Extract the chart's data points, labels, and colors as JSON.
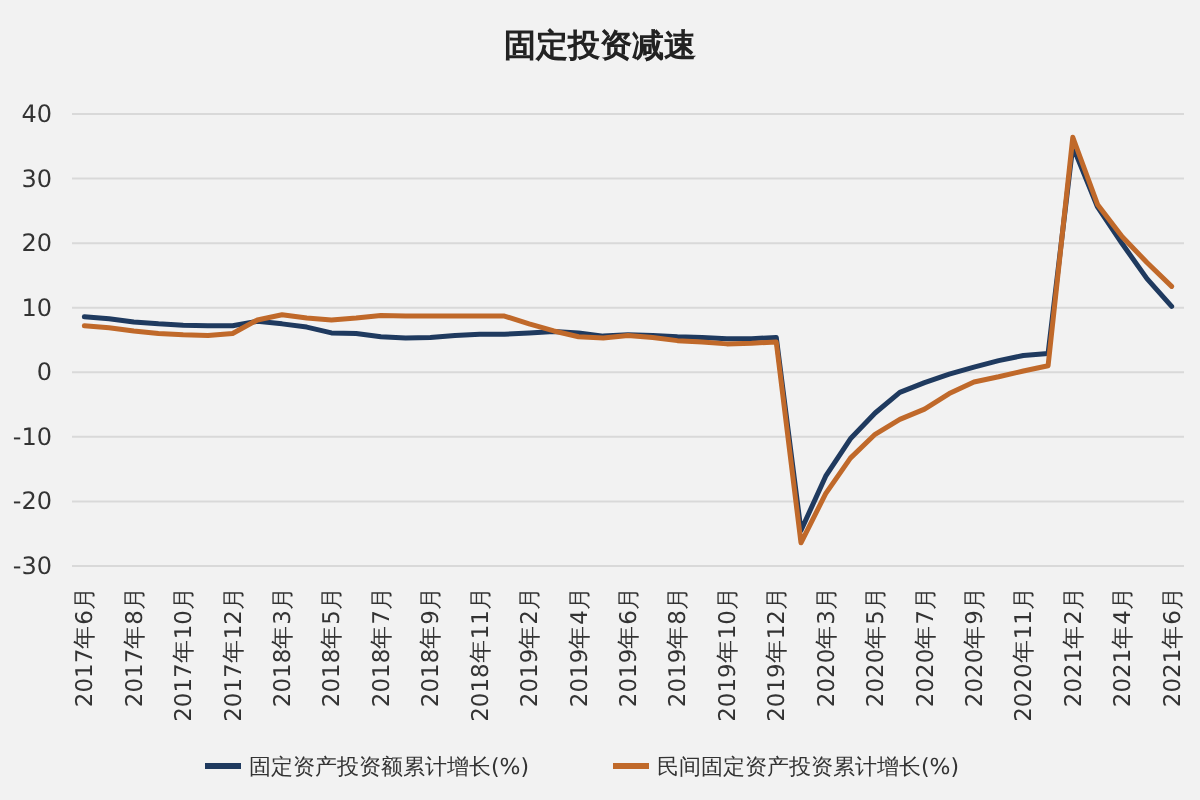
{
  "chart_data": {
    "type": "line",
    "title": "固定投资减速",
    "categories": [
      "2017年6月",
      null,
      "2017年8月",
      null,
      "2017年10月",
      null,
      "2017年12月",
      null,
      "2018年3月",
      null,
      "2018年5月",
      null,
      "2018年7月",
      null,
      "2018年9月",
      null,
      "2018年11月",
      null,
      "2019年2月",
      null,
      "2019年4月",
      null,
      "2019年6月",
      null,
      "2019年8月",
      null,
      "2019年10月",
      null,
      "2019年12月",
      null,
      "2020年3月",
      null,
      "2020年5月",
      null,
      "2020年7月",
      null,
      "2020年9月",
      null,
      "2020年11月",
      null,
      "2021年2月",
      null,
      "2021年4月",
      null,
      "2021年6月"
    ],
    "series": [
      {
        "name": "固定资产投资额累计增长(%)",
        "color": "#1f3a5f",
        "values": [
          8.6,
          8.3,
          7.8,
          7.5,
          7.3,
          7.2,
          7.2,
          7.9,
          7.5,
          7.0,
          6.1,
          6.0,
          5.5,
          5.3,
          5.4,
          5.7,
          5.9,
          5.9,
          6.1,
          6.3,
          6.1,
          5.6,
          5.8,
          5.7,
          5.5,
          5.4,
          5.2,
          5.2,
          5.4,
          -24.5,
          -16.1,
          -10.3,
          -6.3,
          -3.1,
          -1.6,
          -0.3,
          0.8,
          1.8,
          2.6,
          2.9,
          35.0,
          25.6,
          19.9,
          14.5,
          10.2
        ]
      },
      {
        "name": "民间固定资产投资累计增长(%)",
        "color": "#c0692a",
        "values": [
          7.2,
          6.9,
          6.4,
          6.0,
          5.8,
          5.7,
          6.0,
          8.1,
          8.9,
          8.4,
          8.1,
          8.4,
          8.8,
          8.7,
          8.7,
          8.7,
          8.7,
          8.7,
          7.5,
          6.4,
          5.5,
          5.3,
          5.7,
          5.4,
          4.9,
          4.7,
          4.4,
          4.5,
          4.7,
          -26.4,
          -18.8,
          -13.3,
          -9.6,
          -7.3,
          -5.7,
          -3.3,
          -1.5,
          -0.7,
          0.2,
          1.0,
          36.4,
          26.0,
          21.0,
          17.0,
          13.3
        ]
      }
    ],
    "ylim": [
      -30,
      40
    ],
    "yticks": [
      -30,
      -20,
      -10,
      0,
      10,
      20,
      30,
      40
    ],
    "grid": "y",
    "legend": "bottom",
    "marker": "none",
    "line_style": "solid"
  }
}
